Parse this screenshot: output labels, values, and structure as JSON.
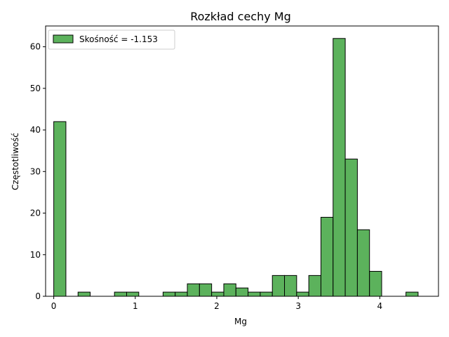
{
  "chart_data": {
    "type": "bar",
    "title": "Rozkład cechy Mg",
    "xlabel": "Mg",
    "ylabel": "Częstotliwość",
    "xlim": [
      -0.1,
      4.72
    ],
    "ylim": [
      0,
      65
    ],
    "x_ticks": [
      0,
      1,
      2,
      3,
      4
    ],
    "y_ticks": [
      0,
      10,
      20,
      30,
      40,
      50,
      60
    ],
    "bin_width": 0.149,
    "bar_color": "#5cb25c",
    "edge_color": "#000000",
    "series": [
      {
        "name": "Skośność = -1.153",
        "bins": [
          {
            "x0": 0.0,
            "x1": 0.149,
            "count": 42
          },
          {
            "x0": 0.149,
            "x1": 0.298,
            "count": 0
          },
          {
            "x0": 0.298,
            "x1": 0.447,
            "count": 1
          },
          {
            "x0": 0.447,
            "x1": 0.596,
            "count": 0
          },
          {
            "x0": 0.596,
            "x1": 0.745,
            "count": 0
          },
          {
            "x0": 0.745,
            "x1": 0.894,
            "count": 1
          },
          {
            "x0": 0.894,
            "x1": 1.043,
            "count": 1
          },
          {
            "x0": 1.043,
            "x1": 1.192,
            "count": 0
          },
          {
            "x0": 1.192,
            "x1": 1.341,
            "count": 0
          },
          {
            "x0": 1.341,
            "x1": 1.49,
            "count": 1
          },
          {
            "x0": 1.49,
            "x1": 1.639,
            "count": 1
          },
          {
            "x0": 1.639,
            "x1": 1.788,
            "count": 3
          },
          {
            "x0": 1.788,
            "x1": 1.937,
            "count": 3
          },
          {
            "x0": 1.937,
            "x1": 2.086,
            "count": 1
          },
          {
            "x0": 2.086,
            "x1": 2.235,
            "count": 3
          },
          {
            "x0": 2.235,
            "x1": 2.384,
            "count": 2
          },
          {
            "x0": 2.384,
            "x1": 2.533,
            "count": 1
          },
          {
            "x0": 2.533,
            "x1": 2.682,
            "count": 1
          },
          {
            "x0": 2.682,
            "x1": 2.831,
            "count": 5
          },
          {
            "x0": 2.831,
            "x1": 2.98,
            "count": 5
          },
          {
            "x0": 2.98,
            "x1": 3.129,
            "count": 1
          },
          {
            "x0": 3.129,
            "x1": 3.278,
            "count": 5
          },
          {
            "x0": 3.278,
            "x1": 3.427,
            "count": 19
          },
          {
            "x0": 3.427,
            "x1": 3.576,
            "count": 62
          },
          {
            "x0": 3.576,
            "x1": 3.725,
            "count": 33
          },
          {
            "x0": 3.725,
            "x1": 3.874,
            "count": 16
          },
          {
            "x0": 3.874,
            "x1": 4.023,
            "count": 6
          },
          {
            "x0": 4.023,
            "x1": 4.172,
            "count": 0
          },
          {
            "x0": 4.172,
            "x1": 4.321,
            "count": 0
          },
          {
            "x0": 4.321,
            "x1": 4.47,
            "count": 1
          }
        ]
      }
    ],
    "legend": {
      "position": "top-left",
      "label": "Skośność = -1.153"
    },
    "grid": false
  }
}
